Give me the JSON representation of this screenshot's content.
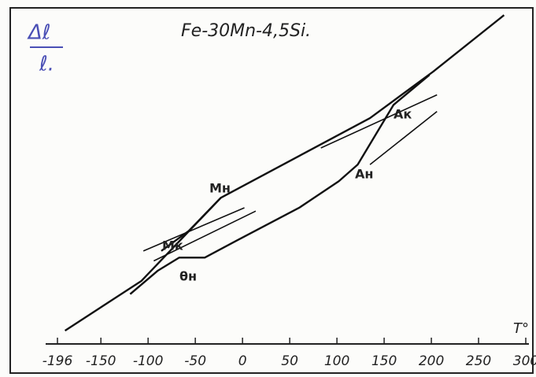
{
  "chart_data": {
    "type": "line",
    "title": "Fe-30Mn-4,5Si.",
    "y_label": [
      "Δℓ",
      "ℓ."
    ],
    "x_label": "T°",
    "xlim": [
      -196,
      300
    ],
    "ylim": [
      0,
      100
    ],
    "xticks": [
      -196,
      -150,
      -100,
      -50,
      0,
      50,
      100,
      150,
      200,
      250,
      300
    ],
    "color": "#111111",
    "series": [
      {
        "x": [
          -188,
          -107,
          -23,
          135,
          202,
          277
        ],
        "values": [
          4,
          19,
          44,
          68,
          82,
          99
        ]
      },
      {
        "x": [
          -119,
          -90,
          -67,
          -40,
          -7,
          60,
          102,
          122,
          160,
          198
        ],
        "values": [
          15,
          22,
          26,
          26,
          31,
          41,
          49,
          54,
          72,
          81
        ]
      },
      {
        "x": [
          -86,
          -57,
          -23
        ],
        "values": [
          28,
          34,
          44
        ]
      },
      {
        "x": [
          -105,
          2
        ],
        "values": [
          28,
          41
        ]
      },
      {
        "x": [
          -94,
          14
        ],
        "values": [
          25,
          40
        ]
      },
      {
        "x": [
          83,
          206
        ],
        "values": [
          59,
          75
        ]
      },
      {
        "x": [
          135,
          206
        ],
        "values": [
          54,
          70
        ]
      }
    ],
    "annotations": [
      "Mн",
      "Mк",
      "θн",
      "Aн",
      "Aк"
    ]
  }
}
